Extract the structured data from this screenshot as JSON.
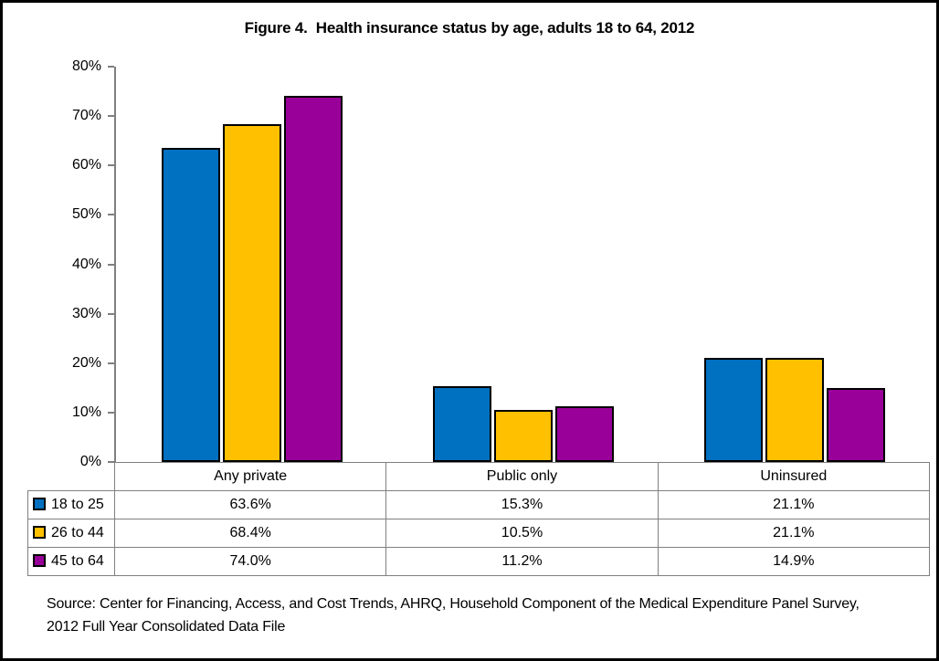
{
  "title": "Figure 4.  Health insurance status by age, adults 18 to 64, 2012",
  "chart_data": {
    "type": "bar",
    "categories": [
      "Any private",
      "Public only",
      "Uninsured"
    ],
    "series": [
      {
        "name": "18 to 25",
        "color": "#0070C0",
        "values": [
          63.6,
          15.3,
          21.1
        ]
      },
      {
        "name": "26 to 44",
        "color": "#FFC000",
        "values": [
          68.4,
          10.5,
          21.1
        ]
      },
      {
        "name": "45 to 64",
        "color": "#990099",
        "values": [
          74.0,
          11.2,
          14.9
        ]
      }
    ],
    "title": "Figure 4.  Health insurance status by age, adults 18 to 64, 2012",
    "xlabel": "",
    "ylabel": "",
    "ylim": [
      0,
      80
    ],
    "ytick_step": 10,
    "ytick_suffix": "%",
    "grid": false,
    "legend_position": "data-table-left-column"
  },
  "data_table": {
    "columns": [
      "Any private",
      "Public only",
      "Uninsured"
    ],
    "rows": [
      {
        "label": "18 to 25",
        "values": [
          "63.6%",
          "15.3%",
          "21.1%"
        ]
      },
      {
        "label": "26 to 44",
        "values": [
          "68.4%",
          "10.5%",
          "21.1%"
        ]
      },
      {
        "label": "45 to 64",
        "values": [
          "74.0%",
          "11.2%",
          "14.9%"
        ]
      }
    ]
  },
  "source_note": "Source: Center for Financing, Access, and Cost Trends, AHRQ, Household Component of the Medical Expenditure Panel Survey, 2012 Full Year Consolidated Data File",
  "colors": {
    "axis": "#808080",
    "table_border": "#808080",
    "bar_border": "#000000",
    "frame": "#000000",
    "background": "#FFFFFF"
  }
}
